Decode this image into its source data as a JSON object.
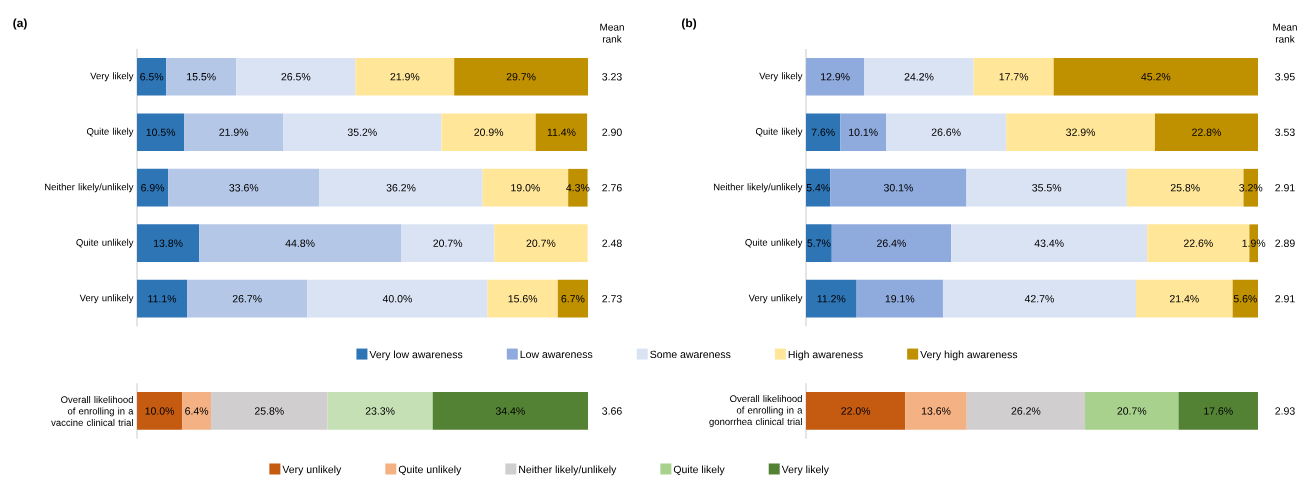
{
  "chart_data": [
    {
      "type": "bar",
      "orientation": "horizontal",
      "stacked": true,
      "title": "(a)",
      "categories": [
        "Very likely",
        "Quite likely",
        "Neither likely/unlikely",
        "Quite unlikely",
        "Very unlikely"
      ],
      "series": [
        {
          "color": "#2e75b6",
          "values": [
            6.5,
            10.5,
            6.9,
            13.8,
            11.1
          ],
          "value_labels": [
            "6.5%",
            "10.5%",
            "6.9%",
            "13.8%",
            "11.1%"
          ]
        },
        {
          "color": "#b4c7e7",
          "values": [
            15.5,
            21.9,
            33.6,
            44.8,
            26.7
          ],
          "value_labels": [
            "15.5%",
            "21.9%",
            "33.6%",
            "44.8%",
            "26.7%"
          ]
        },
        {
          "color": "#dae3f3",
          "values": [
            26.5,
            35.2,
            36.2,
            20.7,
            40.0
          ],
          "value_labels": [
            "26.5%",
            "35.2%",
            "36.2%",
            "20.7%",
            "40.0%"
          ]
        },
        {
          "color": "#ffe699",
          "values": [
            21.9,
            20.9,
            19.0,
            20.7,
            15.6
          ],
          "value_labels": [
            "21.9%",
            "20.9%",
            "19.0%",
            "20.7%",
            "15.6%"
          ]
        },
        {
          "color": "#bf9000",
          "values": [
            29.7,
            11.4,
            4.3,
            null,
            6.7
          ],
          "value_labels": [
            "29.7%",
            "11.4%",
            "4.3%",
            null,
            "6.7%"
          ]
        }
      ],
      "annotations": [
        "Mean rank",
        "3.23",
        "2.90",
        "2.76",
        "2.48",
        "2.73"
      ]
    },
    {
      "type": "bar",
      "orientation": "horizontal",
      "stacked": true,
      "categories": [
        "Overall likelihood of enrolling in a vaccine clinical trial"
      ],
      "series": [
        {
          "color": "#c55a11",
          "values": [
            10.0
          ],
          "value_labels": [
            "10.0%"
          ]
        },
        {
          "color": "#f4b183",
          "values": [
            6.4
          ],
          "value_labels": [
            "6.4%"
          ]
        },
        {
          "color": "#d0cece",
          "values": [
            25.8
          ],
          "value_labels": [
            "25.8%"
          ]
        },
        {
          "color": "#c5e0b4",
          "values": [
            23.3
          ],
          "value_labels": [
            "23.3%"
          ]
        },
        {
          "color": "#548235",
          "values": [
            34.4
          ],
          "value_labels": [
            "34.4%"
          ]
        }
      ],
      "annotations": [
        "3.66"
      ]
    },
    {
      "type": "bar",
      "orientation": "horizontal",
      "stacked": true,
      "title": "(b)",
      "legend": "bottom",
      "categories": [
        "Very likely",
        "Quite likely",
        "Neither likely/unlikely",
        "Quite unlikely",
        "Very unlikely"
      ],
      "series": [
        {
          "name": "Very low awareness",
          "color": "#2e75b6",
          "values": [
            null,
            7.6,
            5.4,
            5.7,
            11.2
          ],
          "value_labels": [
            null,
            "7.6%",
            "5.4%",
            "5.7%",
            "11.2%"
          ]
        },
        {
          "name": "Low awareness",
          "color": "#8faadc",
          "values": [
            12.9,
            10.1,
            30.1,
            26.4,
            19.1
          ],
          "value_labels": [
            "12.9%",
            "10.1%",
            "30.1%",
            "26.4%",
            "19.1%"
          ]
        },
        {
          "name": "Some awareness",
          "color": "#dae3f3",
          "values": [
            24.2,
            26.6,
            35.5,
            43.4,
            42.7
          ],
          "value_labels": [
            "24.2%",
            "26.6%",
            "35.5%",
            "43.4%",
            "42.7%"
          ]
        },
        {
          "name": "High awareness",
          "color": "#ffe699",
          "values": [
            17.7,
            32.9,
            25.8,
            22.6,
            21.4
          ],
          "value_labels": [
            "17.7%",
            "32.9%",
            "25.8%",
            "22.6%",
            "21.4%"
          ]
        },
        {
          "name": "Very high awareness",
          "color": "#bf9000",
          "values": [
            45.2,
            22.8,
            3.2,
            1.9,
            5.6
          ],
          "value_labels": [
            "45.2%",
            "22.8%",
            "3.2%",
            "1.9%",
            "5.6%"
          ]
        }
      ],
      "annotations": [
        "Mean rank",
        "3.95",
        "3.53",
        "2.91",
        "2.89",
        "2.91"
      ]
    },
    {
      "type": "bar",
      "orientation": "horizontal",
      "stacked": true,
      "legend": "bottom",
      "categories": [
        "Overall likelihood of enrolling in a gonorrhea clinical trial"
      ],
      "series": [
        {
          "name": "Very unlikely",
          "color": "#c55a11",
          "values": [
            22.0
          ],
          "value_labels": [
            "22.0%"
          ]
        },
        {
          "name": "Quite unlikely",
          "color": "#f4b183",
          "values": [
            13.6
          ],
          "value_labels": [
            "13.6%"
          ]
        },
        {
          "name": "Neither likely/unlikely",
          "color": "#d0cece",
          "values": [
            26.2
          ],
          "value_labels": [
            "26.2%"
          ]
        },
        {
          "name": "Quite likely",
          "color": "#a9d18e",
          "values": [
            20.7
          ],
          "value_labels": [
            "20.7%"
          ]
        },
        {
          "name": "Very likely",
          "color": "#548235",
          "values": [
            17.6
          ],
          "value_labels": [
            "17.6%"
          ]
        }
      ],
      "annotations": [
        "2.93"
      ]
    }
  ]
}
